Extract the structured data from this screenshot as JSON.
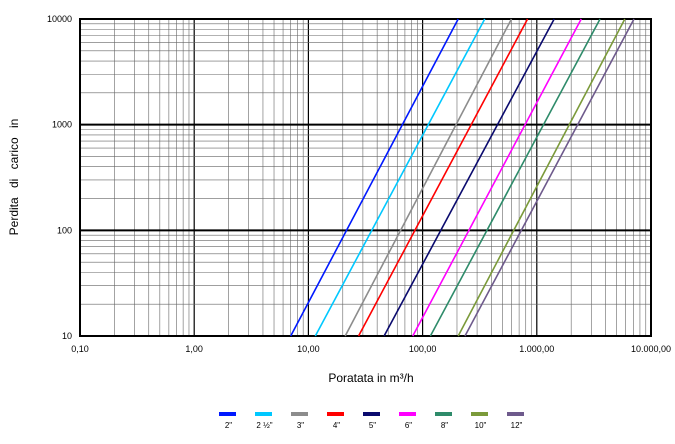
{
  "chart_data": {
    "type": "line",
    "xscale": "log",
    "yscale": "log",
    "xlim": [
      0.1,
      10000
    ],
    "ylim": [
      10,
      10000
    ],
    "xlabel": "Poratata in m³/h",
    "ylabel": "Perdita di carico in",
    "x_ticks": [
      {
        "value": 0.1,
        "label": "0,10"
      },
      {
        "value": 1,
        "label": "1,00"
      },
      {
        "value": 10,
        "label": "10,00"
      },
      {
        "value": 100,
        "label": "100,00"
      },
      {
        "value": 1000,
        "label": "1.000,00"
      },
      {
        "value": 10000,
        "label": "10.000,00"
      }
    ],
    "y_ticks": [
      {
        "value": 10,
        "label": "10"
      },
      {
        "value": 100,
        "label": "100"
      },
      {
        "value": 1000,
        "label": "1000"
      },
      {
        "value": 10000,
        "label": "10000"
      }
    ],
    "grid": true,
    "legend_position": "bottom",
    "series": [
      {
        "name": "2\"",
        "color": "#0019ff",
        "x": [
          7,
          205
        ],
        "y": [
          10,
          10000
        ]
      },
      {
        "name": "2 ½\"",
        "color": "#00c8ff",
        "x": [
          11.5,
          350
        ],
        "y": [
          10,
          10000
        ]
      },
      {
        "name": "3\"",
        "color": "#8c8c8c",
        "x": [
          21,
          600
        ],
        "y": [
          10,
          10000
        ]
      },
      {
        "name": "4\"",
        "color": "#ff0000",
        "x": [
          27.5,
          830
        ],
        "y": [
          10,
          10000
        ]
      },
      {
        "name": "5\"",
        "color": "#0a0a6e",
        "x": [
          46,
          1420
        ],
        "y": [
          10,
          10000
        ]
      },
      {
        "name": "6\"",
        "color": "#ff00ff",
        "x": [
          82,
          2450
        ],
        "y": [
          10,
          10000
        ]
      },
      {
        "name": "8\"",
        "color": "#2e8b6a",
        "x": [
          117,
          3580
        ],
        "y": [
          10,
          10000
        ]
      },
      {
        "name": "10\"",
        "color": "#7b9a3a",
        "x": [
          205,
          5900
        ],
        "y": [
          10,
          10000
        ]
      },
      {
        "name": "12\"",
        "color": "#6e5a8c",
        "x": [
          235,
          7100
        ],
        "y": [
          10,
          10000
        ]
      }
    ]
  }
}
